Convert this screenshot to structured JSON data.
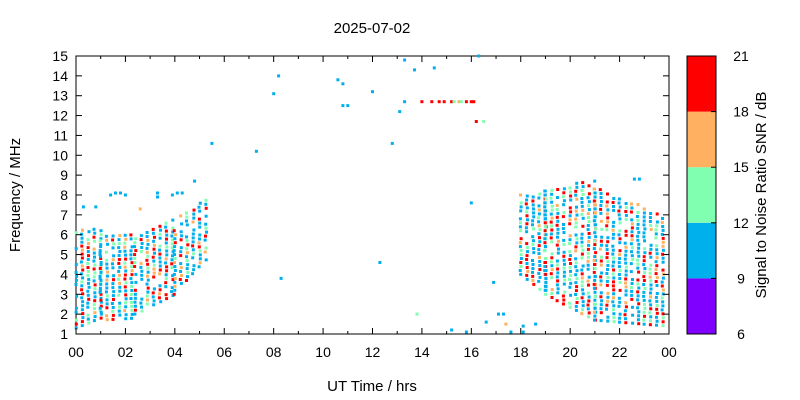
{
  "chart_data": {
    "type": "scatter",
    "title": "2025-07-02",
    "xlabel": "UT Time / hrs",
    "ylabel": "Frequency / MHz",
    "colorbar_label": "Signal to Noise Ratio SNR / dB",
    "xlim": [
      0,
      24
    ],
    "ylim": [
      1,
      15
    ],
    "x_ticks": [
      "00",
      "02",
      "04",
      "06",
      "08",
      "10",
      "12",
      "14",
      "16",
      "18",
      "20",
      "22",
      "00"
    ],
    "y_ticks": [
      "1",
      "2",
      "3",
      "4",
      "5",
      "6",
      "7",
      "8",
      "9",
      "10",
      "11",
      "12",
      "13",
      "14",
      "15"
    ],
    "grid": false,
    "legend": "colorbar-right",
    "snr_bins": [
      {
        "min": 6,
        "max": 9,
        "color": "#8000ff"
      },
      {
        "min": 9,
        "max": 12,
        "color": "#00b0ec"
      },
      {
        "min": 12,
        "max": 15,
        "color": "#80ffb0"
      },
      {
        "min": 15,
        "max": 18,
        "color": "#ffb060"
      },
      {
        "min": 18,
        "max": 21,
        "color": "#ff0000"
      }
    ],
    "colorbar_ticks": [
      "6",
      "9",
      "12",
      "15",
      "18",
      "21"
    ],
    "dense_regions": [
      {
        "t_start": 0.0,
        "t_end": 1.0,
        "f_lo_start": 1.3,
        "f_lo_end": 1.8,
        "f_hi_start": 6.3,
        "f_hi_end": 6.3
      },
      {
        "t_start": 1.0,
        "t_end": 2.4,
        "f_lo_start": 1.7,
        "f_lo_end": 1.8,
        "f_hi_start": 6.0,
        "f_hi_end": 6.0
      },
      {
        "t_start": 2.4,
        "t_end": 4.0,
        "f_lo_start": 2.0,
        "f_lo_end": 3.0,
        "f_hi_start": 5.9,
        "f_hi_end": 6.8
      },
      {
        "t_start": 4.0,
        "t_end": 5.3,
        "f_lo_start": 3.0,
        "f_lo_end": 4.8,
        "f_hi_start": 6.8,
        "f_hi_end": 7.9
      },
      {
        "t_start": 18.0,
        "t_end": 19.0,
        "f_lo_start": 4.0,
        "f_lo_end": 3.0,
        "f_hi_start": 8.1,
        "f_hi_end": 8.3
      },
      {
        "t_start": 19.0,
        "t_end": 21.0,
        "f_lo_start": 3.0,
        "f_lo_end": 1.7,
        "f_hi_start": 8.3,
        "f_hi_end": 8.8
      },
      {
        "t_start": 21.0,
        "t_end": 23.9,
        "f_lo_start": 1.7,
        "f_lo_end": 1.4,
        "f_hi_start": 8.5,
        "f_hi_end": 6.9
      }
    ],
    "sparse_points": [
      {
        "t": 0.3,
        "f": 7.4,
        "snr": 10
      },
      {
        "t": 0.8,
        "f": 7.4,
        "snr": 10
      },
      {
        "t": 1.4,
        "f": 8.0,
        "snr": 10
      },
      {
        "t": 1.6,
        "f": 8.1,
        "snr": 10
      },
      {
        "t": 1.8,
        "f": 8.1,
        "snr": 10
      },
      {
        "t": 2.0,
        "f": 8.0,
        "snr": 10
      },
      {
        "t": 2.6,
        "f": 7.3,
        "snr": 16
      },
      {
        "t": 3.3,
        "f": 8.1,
        "snr": 10
      },
      {
        "t": 3.3,
        "f": 7.9,
        "snr": 10
      },
      {
        "t": 3.9,
        "f": 8.0,
        "snr": 10
      },
      {
        "t": 4.1,
        "f": 8.1,
        "snr": 10
      },
      {
        "t": 4.3,
        "f": 8.1,
        "snr": 10
      },
      {
        "t": 4.8,
        "f": 8.7,
        "snr": 10
      },
      {
        "t": 5.5,
        "f": 10.6,
        "snr": 10
      },
      {
        "t": 7.3,
        "f": 10.2,
        "snr": 10
      },
      {
        "t": 8.0,
        "f": 13.1,
        "snr": 10
      },
      {
        "t": 8.2,
        "f": 14.0,
        "snr": 10
      },
      {
        "t": 8.3,
        "f": 3.8,
        "snr": 10
      },
      {
        "t": 10.6,
        "f": 13.8,
        "snr": 10
      },
      {
        "t": 10.8,
        "f": 13.6,
        "snr": 10
      },
      {
        "t": 10.8,
        "f": 12.5,
        "snr": 10
      },
      {
        "t": 11.0,
        "f": 12.5,
        "snr": 10
      },
      {
        "t": 12.0,
        "f": 13.2,
        "snr": 10
      },
      {
        "t": 12.3,
        "f": 4.6,
        "snr": 10
      },
      {
        "t": 12.8,
        "f": 10.6,
        "snr": 10
      },
      {
        "t": 13.1,
        "f": 12.2,
        "snr": 10
      },
      {
        "t": 13.3,
        "f": 12.7,
        "snr": 10
      },
      {
        "t": 13.3,
        "f": 14.8,
        "snr": 10
      },
      {
        "t": 13.7,
        "f": 14.3,
        "snr": 10
      },
      {
        "t": 13.8,
        "f": 2.0,
        "snr": 13
      },
      {
        "t": 14.0,
        "f": 12.7,
        "snr": 20
      },
      {
        "t": 14.4,
        "f": 12.7,
        "snr": 20
      },
      {
        "t": 14.5,
        "f": 14.4,
        "snr": 10
      },
      {
        "t": 14.7,
        "f": 12.7,
        "snr": 20
      },
      {
        "t": 14.9,
        "f": 12.7,
        "snr": 20
      },
      {
        "t": 15.2,
        "f": 12.7,
        "snr": 20
      },
      {
        "t": 15.3,
        "f": 12.7,
        "snr": 13
      },
      {
        "t": 15.5,
        "f": 12.7,
        "snr": 16
      },
      {
        "t": 15.6,
        "f": 12.7,
        "snr": 13
      },
      {
        "t": 15.8,
        "f": 12.7,
        "snr": 20
      },
      {
        "t": 16.0,
        "f": 12.7,
        "snr": 20
      },
      {
        "t": 16.1,
        "f": 12.7,
        "snr": 20
      },
      {
        "t": 16.2,
        "f": 11.7,
        "snr": 20
      },
      {
        "t": 16.5,
        "f": 11.7,
        "snr": 13
      },
      {
        "t": 16.0,
        "f": 7.6,
        "snr": 10
      },
      {
        "t": 16.3,
        "f": 15.0,
        "snr": 10
      },
      {
        "t": 15.2,
        "f": 1.2,
        "snr": 10
      },
      {
        "t": 15.8,
        "f": 1.1,
        "snr": 10
      },
      {
        "t": 16.6,
        "f": 1.6,
        "snr": 10
      },
      {
        "t": 16.9,
        "f": 3.6,
        "snr": 10
      },
      {
        "t": 17.1,
        "f": 2.0,
        "snr": 10
      },
      {
        "t": 17.3,
        "f": 2.0,
        "snr": 10
      },
      {
        "t": 17.4,
        "f": 1.5,
        "snr": 16
      },
      {
        "t": 17.6,
        "f": 1.1,
        "snr": 10
      },
      {
        "t": 18.1,
        "f": 1.4,
        "snr": 10
      },
      {
        "t": 18.1,
        "f": 1.1,
        "snr": 10
      },
      {
        "t": 18.6,
        "f": 1.5,
        "snr": 10
      },
      {
        "t": 22.6,
        "f": 8.8,
        "snr": 10
      },
      {
        "t": 22.8,
        "f": 8.8,
        "snr": 10
      }
    ]
  }
}
